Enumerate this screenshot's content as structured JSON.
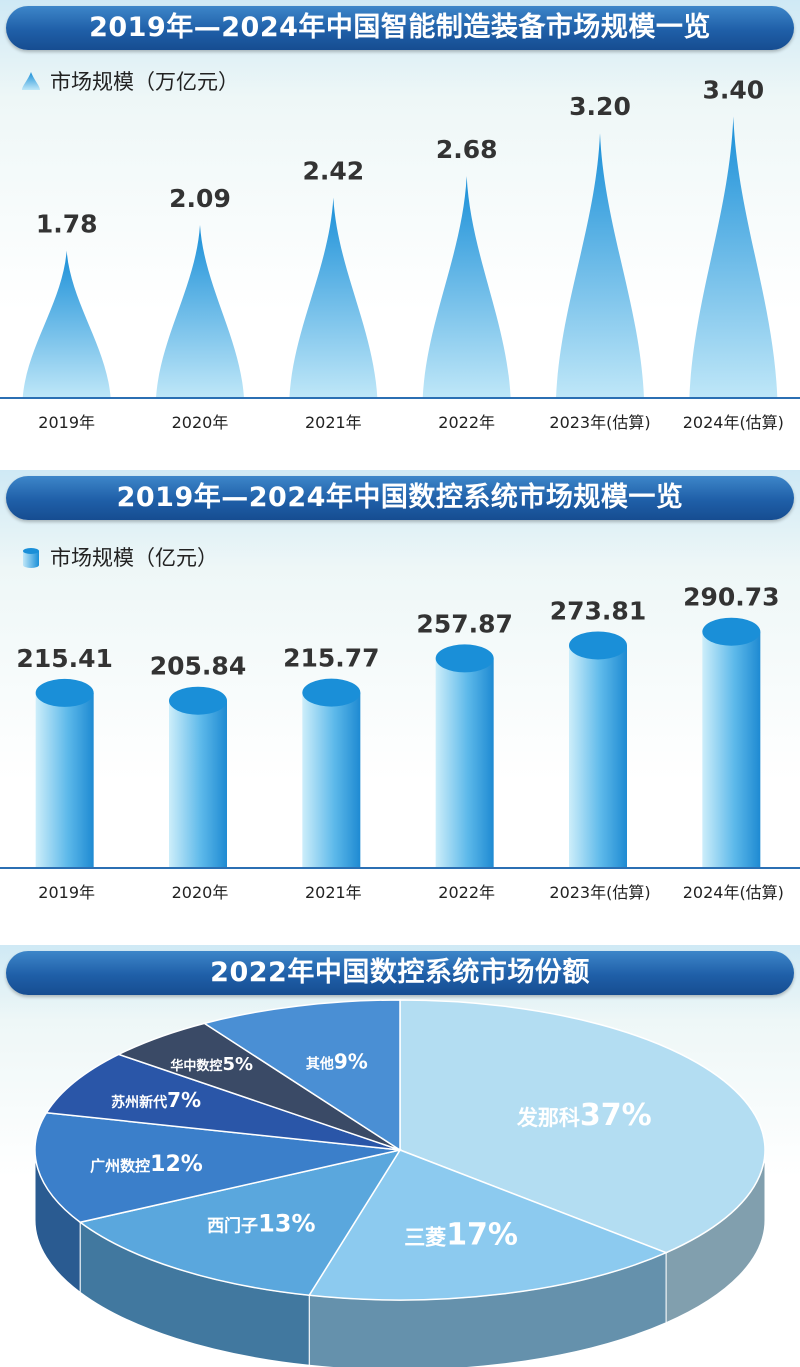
{
  "chart_data": [
    {
      "type": "bar",
      "title": "2019年—2024年中国智能制造装备市场规模一览",
      "legend": "市场规模（万亿元）",
      "categories": [
        "2019年",
        "2020年",
        "2021年",
        "2022年",
        "2023年(估算)",
        "2024年(估算)"
      ],
      "values": [
        1.78,
        2.09,
        2.42,
        2.68,
        3.2,
        3.4
      ],
      "value_labels": [
        "1.78",
        "2.09",
        "2.42",
        "2.68",
        "3.20",
        "3.40"
      ],
      "ylim": [
        0,
        3.6
      ],
      "colors": {
        "top": "#1a8fd8",
        "bottom": "#bfe7f8"
      }
    },
    {
      "type": "bar",
      "title": "2019年—2024年中国数控系统市场规模一览",
      "legend": "市场规模（亿元）",
      "categories": [
        "2019年",
        "2020年",
        "2021年",
        "2022年",
        "2023年(估算)",
        "2024年(估算)"
      ],
      "values": [
        215.41,
        205.84,
        215.77,
        257.87,
        273.81,
        290.73
      ],
      "value_labels": [
        "215.41",
        "205.84",
        "215.77",
        "257.87",
        "273.81",
        "290.73"
      ],
      "ylim": [
        0,
        350
      ],
      "colors": {
        "top": "#1a8fd8",
        "bottom": "#bfe7f8"
      }
    },
    {
      "type": "pie",
      "title": "2022年中国数控系统市场份额",
      "slices": [
        {
          "name": "发那科",
          "pct_label": "37%",
          "value": 37,
          "color": "#b3ddf2"
        },
        {
          "name": "三菱",
          "pct_label": "17%",
          "value": 17,
          "color": "#8ccaef"
        },
        {
          "name": "西门子",
          "pct_label": "13%",
          "value": 13,
          "color": "#5aa7dd"
        },
        {
          "name": "广州数控",
          "pct_label": "12%",
          "value": 12,
          "color": "#3b7fca"
        },
        {
          "name": "苏州新代",
          "pct_label": "7%",
          "value": 7,
          "color": "#2a56a8"
        },
        {
          "name": "华中数控",
          "pct_label": "5%",
          "value": 5,
          "color": "#3a4a66"
        },
        {
          "name": "其他",
          "pct_label": "9%",
          "value": 9,
          "color": "#4a8fd4"
        }
      ]
    }
  ]
}
